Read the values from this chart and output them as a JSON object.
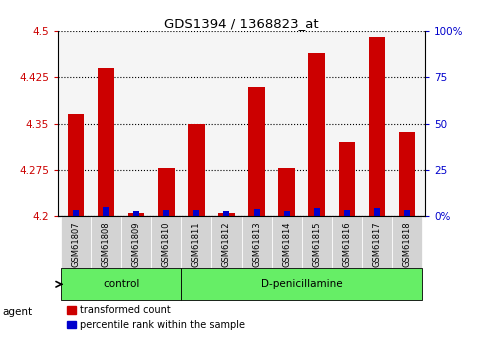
{
  "title": "GDS1394 / 1368823_at",
  "samples": [
    "GSM61807",
    "GSM61808",
    "GSM61809",
    "GSM61810",
    "GSM61811",
    "GSM61812",
    "GSM61813",
    "GSM61814",
    "GSM61815",
    "GSM61816",
    "GSM61817",
    "GSM61818"
  ],
  "transformed_count": [
    4.365,
    4.44,
    4.205,
    4.278,
    4.35,
    4.205,
    4.41,
    4.278,
    4.465,
    4.32,
    4.49,
    4.337
  ],
  "percentile_rank": [
    3.5,
    5.0,
    2.5,
    3.5,
    3.5,
    2.5,
    4.0,
    3.0,
    4.5,
    3.5,
    4.5,
    3.5
  ],
  "y_min": 4.2,
  "y_max": 4.5,
  "y_ticks": [
    4.2,
    4.275,
    4.35,
    4.425,
    4.5
  ],
  "y_right_ticks": [
    0,
    25,
    50,
    75,
    100
  ],
  "bar_color_red": "#cc0000",
  "bar_color_blue": "#0000cc",
  "bar_width": 0.55,
  "blue_bar_width": 0.2,
  "label_color_left": "#cc0000",
  "label_color_right": "#0000cc",
  "n_control": 4,
  "n_treatment": 8,
  "group_labels": [
    "control",
    "D-penicillamine"
  ],
  "legend_labels": [
    "transformed count",
    "percentile rank within the sample"
  ]
}
